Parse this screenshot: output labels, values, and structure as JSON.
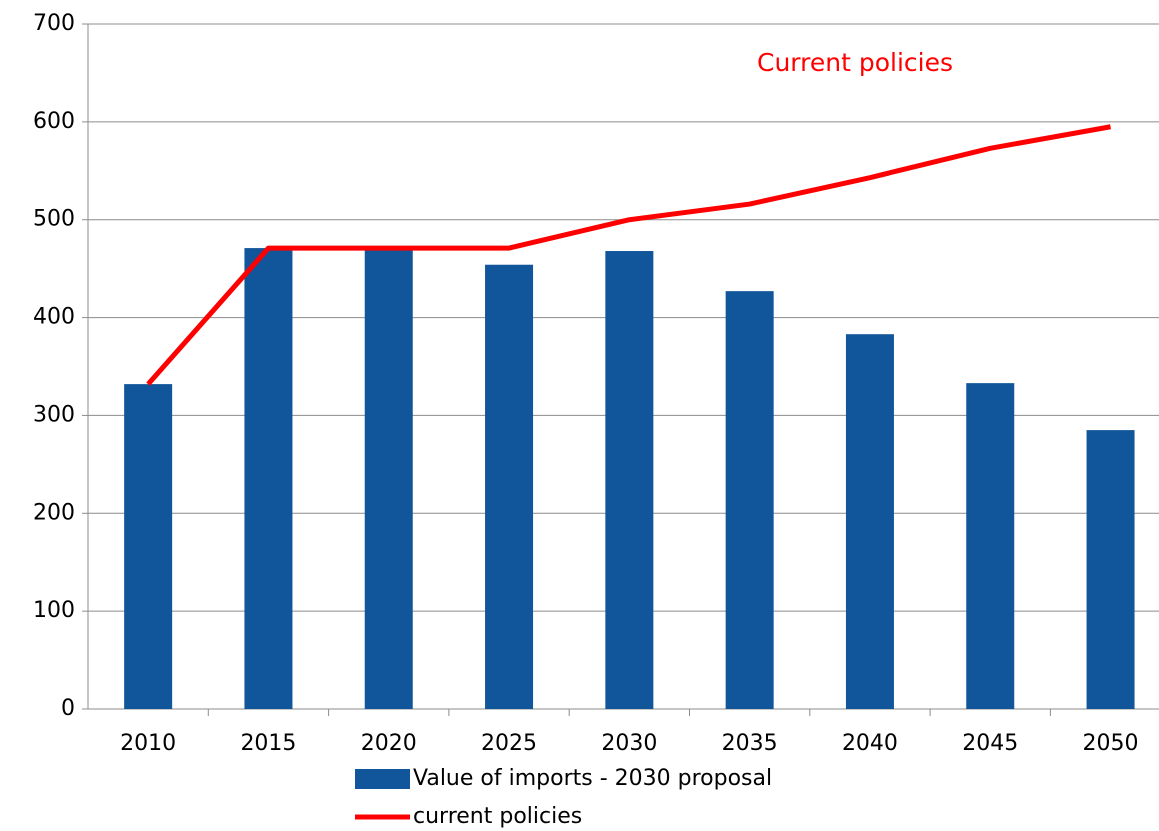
{
  "chart_data": {
    "type": "bar",
    "annotation": "Current policies",
    "annotation_color": "#ff0000",
    "categories": [
      "2010",
      "2015",
      "2020",
      "2025",
      "2030",
      "2035",
      "2040",
      "2045",
      "2050"
    ],
    "series": [
      {
        "name": "Value of imports - 2030 proposal",
        "type": "bar",
        "color": "#11559a",
        "values": [
          332,
          471,
          471,
          454,
          468,
          427,
          383,
          333,
          285
        ]
      },
      {
        "name": "current policies",
        "type": "line",
        "color": "#ff0000",
        "values": [
          332,
          471,
          471,
          471,
          500,
          516,
          543,
          573,
          595
        ]
      }
    ],
    "ylim": [
      0,
      700
    ],
    "yticks": [
      0,
      100,
      200,
      300,
      400,
      500,
      600,
      700
    ],
    "grid": true,
    "legend": "bottom"
  }
}
